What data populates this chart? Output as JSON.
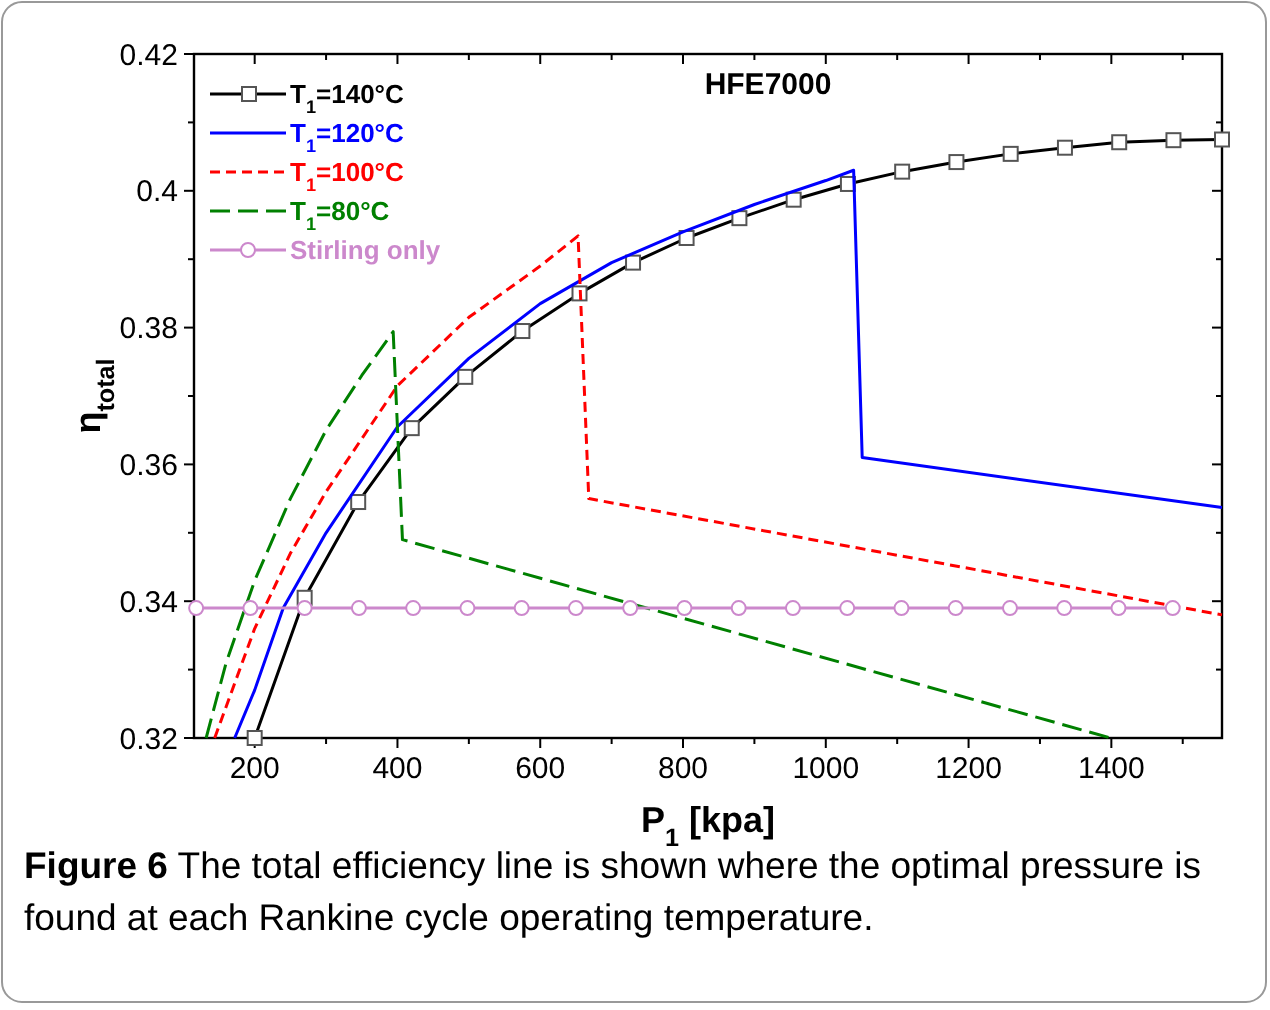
{
  "chart_data": {
    "type": "line",
    "ylabel": "η$_{total}$",
    "xlabel": "P$_{1}$   [kpa]",
    "xlim": [
      115,
      1555
    ],
    "ylim": [
      0.32,
      0.42
    ],
    "xticks": [
      200,
      {
        "value": 300,
        "label": null
      },
      400,
      {
        "value": 500,
        "label": null
      },
      600,
      {
        "value": 700,
        "label": null
      },
      800,
      {
        "value": 900,
        "label": null
      },
      1000,
      {
        "value": 1100,
        "label": null
      },
      1200,
      {
        "value": 1300,
        "label": null
      },
      1400,
      {
        "value": 1500,
        "label": null
      }
    ],
    "yticks": [
      0.32,
      {
        "value": 0.33,
        "label": null
      },
      0.34,
      {
        "value": 0.35,
        "label": null
      },
      0.36,
      {
        "value": 0.37,
        "label": null
      },
      0.38,
      {
        "value": 0.39,
        "label": null
      },
      0.4,
      {
        "value": 0.41,
        "label": null
      },
      0.42
    ],
    "legend": "top left",
    "grid": false,
    "series": [
      {
        "name": "T$_{1}$=140°C",
        "color": "#000000",
        "marker": "square",
        "line_style": "solid",
        "x": [
          200,
          270,
          345,
          420,
          495,
          575,
          655,
          730,
          805,
          879,
          955,
          1031,
          1107,
          1183,
          1259,
          1335,
          1411,
          1487,
          1555
        ],
        "values": [
          0.32,
          0.3405,
          0.3545,
          0.3653,
          0.3728,
          0.3795,
          0.385,
          0.3895,
          0.3931,
          0.396,
          0.3987,
          0.401,
          0.4028,
          0.4042,
          0.4054,
          0.4063,
          0.4071,
          0.4074,
          0.4075
        ]
      },
      {
        "name": "T$_{1}$=120°C",
        "color": "#0000ff",
        "marker": "none",
        "line_style": "solid",
        "x": [
          172,
          200,
          240,
          300,
          400,
          500,
          600,
          700,
          800,
          900,
          1000,
          1039,
          1051,
          1555
        ],
        "values": [
          0.32,
          0.327,
          0.339,
          0.35,
          0.3655,
          0.3755,
          0.3835,
          0.3895,
          0.394,
          0.398,
          0.4015,
          0.403,
          0.361,
          0.3537
        ]
      },
      {
        "name": "T$_{1}$=100°C",
        "color": "#ff0000",
        "marker": "none",
        "line_style": "dashed",
        "x": [
          144,
          200,
          250,
          300,
          400,
          500,
          600,
          653,
          668,
          1555
        ],
        "values": [
          0.32,
          0.336,
          0.347,
          0.356,
          0.3715,
          0.3815,
          0.389,
          0.3934,
          0.355,
          0.338
        ]
      },
      {
        "name": "T$_{1}$=80°C",
        "color": "#008000",
        "marker": "none",
        "line_style": "longdash",
        "x": [
          132,
          160,
          200,
          250,
          300,
          350,
          394,
          407,
          1399
        ],
        "values": [
          0.32,
          0.331,
          0.343,
          0.355,
          0.365,
          0.373,
          0.3794,
          0.349,
          0.32
        ]
      },
      {
        "name": "Stirling only",
        "color": "#cc88cc",
        "marker": "circle",
        "line_style": "solid",
        "x": [
          118,
          194,
          270,
          346,
          422,
          498,
          574,
          650,
          726,
          802,
          878,
          954,
          1030,
          1106,
          1182,
          1258,
          1334,
          1410,
          1486
        ],
        "values": [
          0.339,
          0.339,
          0.339,
          0.339,
          0.339,
          0.339,
          0.339,
          0.339,
          0.339,
          0.339,
          0.339,
          0.339,
          0.339,
          0.339,
          0.339,
          0.339,
          0.339,
          0.339,
          0.339
        ]
      }
    ],
    "annotations": [
      "HFE7000",
      "Figure 6 The total efficiency line is shown where the optimal pressure is found at each Rankine cycle operating temperature."
    ]
  }
}
